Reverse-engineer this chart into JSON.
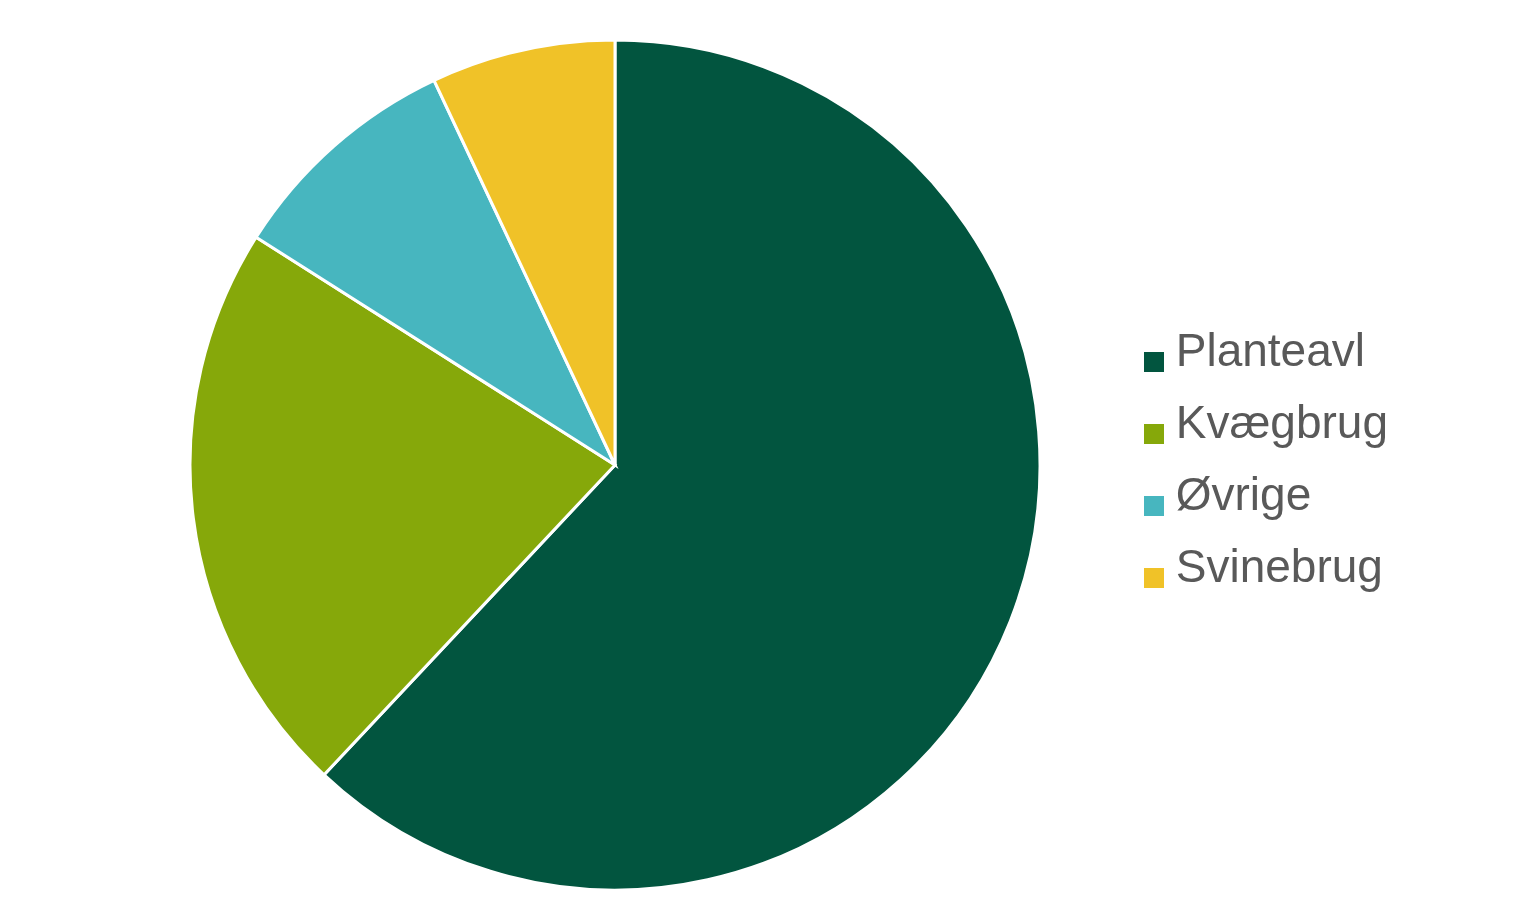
{
  "chart_data": {
    "type": "pie",
    "categories": [
      "Planteavl",
      "Kvægbrug",
      "Øvrige",
      "Svinebrug"
    ],
    "values": [
      62,
      22,
      9,
      7
    ],
    "colors": [
      "#02553f",
      "#86a80a",
      "#47b6bf",
      "#f0c228"
    ],
    "legend": "right"
  }
}
